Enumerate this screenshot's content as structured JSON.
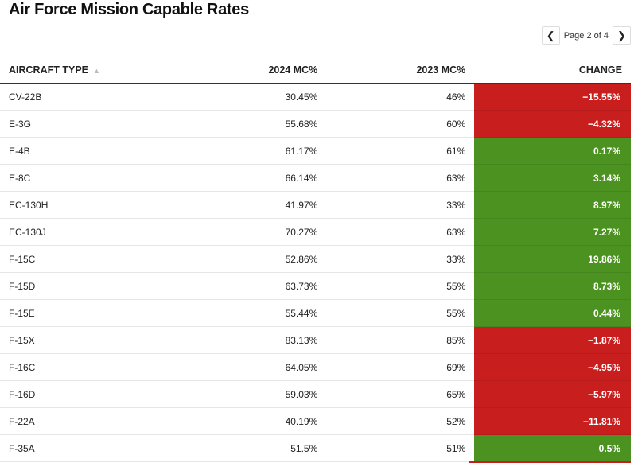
{
  "title": "Air Force Mission Capable Rates",
  "pager": {
    "prev_icon": "chevron-left-icon",
    "next_icon": "chevron-right-icon",
    "label": "Page 2 of 4",
    "current_page": 2,
    "total_pages": 4
  },
  "columns": [
    "AIRCRAFT TYPE",
    "2024 MC%",
    "2023 MC%",
    "CHANGE"
  ],
  "sort": {
    "column": "AIRCRAFT TYPE",
    "direction": "ascending",
    "icon": "sort-up-icon"
  },
  "colors": {
    "negative": "#c81e1e",
    "positive": "#4c9221"
  },
  "rows": [
    {
      "type": "CV-22B",
      "mc2024": "30.45%",
      "mc2023": "46%",
      "change": "−15.55%",
      "positive": false
    },
    {
      "type": "E-3G",
      "mc2024": "55.68%",
      "mc2023": "60%",
      "change": "−4.32%",
      "positive": false
    },
    {
      "type": "E-4B",
      "mc2024": "61.17%",
      "mc2023": "61%",
      "change": "0.17%",
      "positive": true
    },
    {
      "type": "E-8C",
      "mc2024": "66.14%",
      "mc2023": "63%",
      "change": "3.14%",
      "positive": true
    },
    {
      "type": "EC-130H",
      "mc2024": "41.97%",
      "mc2023": "33%",
      "change": "8.97%",
      "positive": true
    },
    {
      "type": "EC-130J",
      "mc2024": "70.27%",
      "mc2023": "63%",
      "change": "7.27%",
      "positive": true
    },
    {
      "type": "F-15C",
      "mc2024": "52.86%",
      "mc2023": "33%",
      "change": "19.86%",
      "positive": true
    },
    {
      "type": "F-15D",
      "mc2024": "63.73%",
      "mc2023": "55%",
      "change": "8.73%",
      "positive": true
    },
    {
      "type": "F-15E",
      "mc2024": "55.44%",
      "mc2023": "55%",
      "change": "0.44%",
      "positive": true
    },
    {
      "type": "F-15X",
      "mc2024": "83.13%",
      "mc2023": "85%",
      "change": "−1.87%",
      "positive": false
    },
    {
      "type": "F-16C",
      "mc2024": "64.05%",
      "mc2023": "69%",
      "change": "−4.95%",
      "positive": false
    },
    {
      "type": "F-16D",
      "mc2024": "59.03%",
      "mc2023": "65%",
      "change": "−5.97%",
      "positive": false
    },
    {
      "type": "F-22A",
      "mc2024": "40.19%",
      "mc2023": "52%",
      "change": "−11.81%",
      "positive": false
    },
    {
      "type": "F-35A",
      "mc2024": "51.5%",
      "mc2023": "51%",
      "change": "0.5%",
      "positive": true
    }
  ]
}
